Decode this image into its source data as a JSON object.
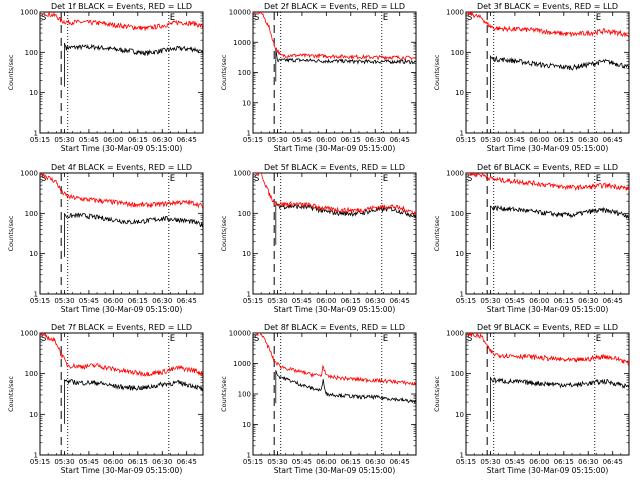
{
  "chart_data": [
    {
      "type": "line",
      "title": "Det 1f BLACK = Events, RED = LLD",
      "xlabel": "Start Time (30-Mar-09 05:15:00)",
      "ylabel": "Counts/sec",
      "scale_y": "log",
      "ylim": [
        1,
        1000
      ],
      "x_ticks": [
        "05:15",
        "05:30",
        "05:45",
        "06:00",
        "06:15",
        "06:30",
        "06:45"
      ],
      "y_ticks": [
        "1",
        "10",
        "100",
        "1000"
      ],
      "markers": {
        "start_label": "S",
        "end_label": "E",
        "dashed_line_x": "05:28",
        "dotted_lines_x": [
          "05:32",
          "06:34"
        ]
      },
      "series": [
        {
          "color": "#000000",
          "x": [
            "05:30",
            "05:31",
            "05:40",
            "05:50",
            "06:00",
            "06:10",
            "06:20",
            "06:30",
            "06:40",
            "06:50",
            "06:55"
          ],
          "y": [
            170,
            130,
            135,
            135,
            120,
            110,
            95,
            110,
            125,
            120,
            95
          ]
        },
        {
          "color": "#ff0000",
          "x": [
            "05:15",
            "05:25",
            "05:28",
            "05:32",
            "05:40",
            "05:50",
            "06:00",
            "06:10",
            "06:20",
            "06:30",
            "06:40",
            "06:50",
            "06:55"
          ],
          "y": [
            1000,
            800,
            600,
            560,
            560,
            540,
            480,
            430,
            390,
            460,
            560,
            520,
            430
          ]
        }
      ]
    },
    {
      "type": "line",
      "title": "Det 2f BLACK = Events, RED = LLD",
      "xlabel": "Start Time (30-Mar-09 05:15:00)",
      "ylabel": "Counts/sec",
      "scale_y": "log",
      "ylim": [
        1,
        10000
      ],
      "x_ticks": [
        "05:15",
        "05:30",
        "05:45",
        "06:00",
        "06:15",
        "06:30",
        "06:45"
      ],
      "y_ticks": [
        "1",
        "10",
        "100",
        "1000",
        "10000"
      ],
      "markers": {
        "start_label": "S",
        "end_label": "E",
        "dashed_line_x": "05:28",
        "dotted_lines_x": [
          "05:32",
          "06:34"
        ]
      },
      "series": [
        {
          "color": "#000000",
          "x": [
            "05:29",
            "05:30",
            "05:40",
            "05:50",
            "06:00",
            "06:10",
            "06:20",
            "06:30",
            "06:40",
            "06:50",
            "06:55"
          ],
          "y": [
            600,
            250,
            260,
            250,
            240,
            240,
            230,
            230,
            230,
            230,
            220
          ]
        },
        {
          "color": "#ff0000",
          "x": [
            "05:15",
            "05:20",
            "05:25",
            "05:28",
            "05:32",
            "05:40",
            "05:50",
            "06:00",
            "06:10",
            "06:20",
            "06:30",
            "06:40",
            "06:50",
            "06:55"
          ],
          "y": [
            10000,
            10000,
            3000,
            800,
            360,
            370,
            360,
            350,
            340,
            330,
            320,
            320,
            310,
            300
          ]
        }
      ]
    },
    {
      "type": "line",
      "title": "Det 3f BLACK = Events, RED = LLD",
      "xlabel": "Start Time (30-Mar-09 05:15:00)",
      "ylabel": "Counts/sec",
      "scale_y": "log",
      "ylim": [
        1,
        1000
      ],
      "x_ticks": [
        "05:15",
        "05:30",
        "05:45",
        "06:00",
        "06:15",
        "06:30",
        "06:45"
      ],
      "y_ticks": [
        "1",
        "10",
        "100",
        "1000"
      ],
      "markers": {
        "start_label": "S",
        "end_label": "E",
        "dashed_line_x": "05:28",
        "dotted_lines_x": [
          "05:32",
          "06:34"
        ]
      },
      "series": [
        {
          "color": "#000000",
          "x": [
            "05:30",
            "05:31",
            "05:40",
            "05:50",
            "06:00",
            "06:10",
            "06:20",
            "06:30",
            "06:40",
            "06:50",
            "06:55"
          ],
          "y": [
            80,
            70,
            65,
            58,
            50,
            45,
            42,
            50,
            60,
            50,
            40
          ]
        },
        {
          "color": "#ff0000",
          "x": [
            "05:15",
            "05:25",
            "05:28",
            "05:32",
            "05:40",
            "05:50",
            "06:00",
            "06:10",
            "06:20",
            "06:30",
            "06:40",
            "06:50",
            "06:55"
          ],
          "y": [
            1000,
            700,
            500,
            400,
            380,
            370,
            350,
            300,
            280,
            300,
            340,
            300,
            260
          ]
        }
      ]
    },
    {
      "type": "line",
      "title": "Det 4f BLACK = Events, RED = LLD",
      "xlabel": "Start Time (30-Mar-09 05:15:00)",
      "ylabel": "Counts/sec",
      "scale_y": "log",
      "ylim": [
        1,
        1000
      ],
      "x_ticks": [
        "05:15",
        "05:30",
        "05:45",
        "06:00",
        "06:15",
        "06:30",
        "06:45"
      ],
      "y_ticks": [
        "1",
        "10",
        "100",
        "1000"
      ],
      "markers": {
        "start_label": "S",
        "end_label": "E",
        "dashed_line_x": "05:28",
        "dotted_lines_x": [
          "05:32",
          "06:34"
        ]
      },
      "series": [
        {
          "color": "#000000",
          "x": [
            "05:30",
            "05:31",
            "05:40",
            "05:50",
            "06:00",
            "06:10",
            "06:20",
            "06:30",
            "06:40",
            "06:50",
            "06:55"
          ],
          "y": [
            100,
            85,
            90,
            80,
            70,
            60,
            65,
            75,
            70,
            60,
            50
          ]
        },
        {
          "color": "#ff0000",
          "x": [
            "05:15",
            "05:25",
            "05:28",
            "05:32",
            "05:40",
            "05:50",
            "06:00",
            "06:10",
            "06:20",
            "06:30",
            "06:40",
            "06:50",
            "06:55"
          ],
          "y": [
            1000,
            600,
            350,
            260,
            230,
            210,
            190,
            170,
            160,
            170,
            190,
            180,
            150
          ]
        }
      ]
    },
    {
      "type": "line",
      "title": "Det 5f BLACK = Events, RED = LLD",
      "xlabel": "Start Time (30-Mar-09 05:15:00)",
      "ylabel": "Counts/sec",
      "scale_y": "log",
      "ylim": [
        1,
        1000
      ],
      "x_ticks": [
        "05:15",
        "05:30",
        "05:45",
        "06:00",
        "06:15",
        "06:30",
        "06:45"
      ],
      "y_ticks": [
        "1",
        "10",
        "100",
        "1000"
      ],
      "markers": {
        "start_label": "S",
        "end_label": "E",
        "dashed_line_x": "05:28",
        "dotted_lines_x": [
          "05:32",
          "06:34"
        ]
      },
      "series": [
        {
          "color": "#000000",
          "x": [
            "05:29",
            "05:30",
            "05:40",
            "05:50",
            "06:00",
            "06:10",
            "06:20",
            "06:30",
            "06:40",
            "06:50",
            "06:55"
          ],
          "y": [
            200,
            150,
            150,
            140,
            110,
            100,
            100,
            120,
            130,
            100,
            80
          ]
        },
        {
          "color": "#ff0000",
          "x": [
            "05:15",
            "05:20",
            "05:25",
            "05:28",
            "05:32",
            "05:40",
            "05:50",
            "06:00",
            "06:10",
            "06:20",
            "06:30",
            "06:40",
            "06:50",
            "06:55"
          ],
          "y": [
            1000,
            1000,
            300,
            180,
            170,
            170,
            160,
            130,
            120,
            120,
            140,
            150,
            120,
            100
          ]
        }
      ]
    },
    {
      "type": "line",
      "title": "Det 6f BLACK = Events, RED = LLD",
      "xlabel": "Start Time (30-Mar-09 05:15:00)",
      "ylabel": "Counts/sec",
      "scale_y": "log",
      "ylim": [
        1,
        1000
      ],
      "x_ticks": [
        "05:15",
        "05:30",
        "05:45",
        "06:00",
        "06:15",
        "06:30",
        "06:45"
      ],
      "y_ticks": [
        "1",
        "10",
        "100",
        "1000"
      ],
      "markers": {
        "start_label": "S",
        "end_label": "E",
        "dashed_line_x": "05:28",
        "dotted_lines_x": [
          "05:32",
          "06:34"
        ]
      },
      "series": [
        {
          "color": "#000000",
          "x": [
            "05:30",
            "05:31",
            "05:40",
            "05:50",
            "06:00",
            "06:10",
            "06:20",
            "06:30",
            "06:40",
            "06:50",
            "06:55"
          ],
          "y": [
            150,
            140,
            130,
            120,
            105,
            95,
            90,
            110,
            120,
            100,
            85
          ]
        },
        {
          "color": "#ff0000",
          "x": [
            "05:15",
            "05:25",
            "05:28",
            "05:32",
            "05:40",
            "05:50",
            "06:00",
            "06:10",
            "06:20",
            "06:30",
            "06:40",
            "06:50",
            "06:55"
          ],
          "y": [
            1000,
            900,
            800,
            700,
            650,
            600,
            540,
            480,
            440,
            450,
            500,
            450,
            400
          ]
        }
      ]
    },
    {
      "type": "line",
      "title": "Det 7f BLACK = Events, RED = LLD",
      "xlabel": "Start Time (30-Mar-09 05:15:00)",
      "ylabel": "Counts/sec",
      "scale_y": "log",
      "ylim": [
        1,
        1000
      ],
      "x_ticks": [
        "05:15",
        "05:30",
        "05:45",
        "06:00",
        "06:15",
        "06:30",
        "06:45"
      ],
      "y_ticks": [
        "1",
        "10",
        "100",
        "1000"
      ],
      "markers": {
        "start_label": "S",
        "end_label": "E",
        "dashed_line_x": "05:28",
        "dotted_lines_x": [
          "05:32",
          "06:34"
        ]
      },
      "series": [
        {
          "color": "#000000",
          "x": [
            "05:30",
            "05:31",
            "05:40",
            "05:50",
            "06:00",
            "06:10",
            "06:20",
            "06:30",
            "06:40",
            "06:50",
            "06:55"
          ],
          "y": [
            70,
            65,
            60,
            60,
            50,
            45,
            45,
            55,
            60,
            50,
            40
          ]
        },
        {
          "color": "#ff0000",
          "x": [
            "05:15",
            "05:25",
            "05:28",
            "05:32",
            "05:40",
            "05:50",
            "06:00",
            "06:10",
            "06:20",
            "06:30",
            "06:40",
            "06:50",
            "06:55"
          ],
          "y": [
            1000,
            600,
            300,
            160,
            150,
            160,
            130,
            110,
            100,
            110,
            140,
            120,
            100
          ]
        }
      ]
    },
    {
      "type": "line",
      "title": "Det 8f BLACK = Events, RED = LLD",
      "xlabel": "Start Time (30-Mar-09 05:15:00)",
      "ylabel": "Counts/sec",
      "scale_y": "log",
      "ylim": [
        1,
        10000
      ],
      "x_ticks": [
        "05:15",
        "05:30",
        "05:45",
        "06:00",
        "06:15",
        "06:30",
        "06:45"
      ],
      "y_ticks": [
        "1",
        "10",
        "100",
        "1000",
        "10000"
      ],
      "markers": {
        "start_label": "S",
        "end_label": "E",
        "dashed_line_x": "05:28",
        "dotted_lines_x": [
          "05:32",
          "06:34"
        ]
      },
      "series": [
        {
          "color": "#000000",
          "x": [
            "05:29",
            "05:30",
            "05:40",
            "05:50",
            "05:57",
            "05:58",
            "06:00",
            "06:10",
            "06:20",
            "06:30",
            "06:40",
            "06:50",
            "06:55"
          ],
          "y": [
            600,
            400,
            250,
            160,
            130,
            300,
            100,
            90,
            80,
            80,
            70,
            60,
            55
          ]
        },
        {
          "color": "#ff0000",
          "x": [
            "05:15",
            "05:20",
            "05:25",
            "05:28",
            "05:32",
            "05:40",
            "05:50",
            "05:57",
            "05:58",
            "06:00",
            "06:10",
            "06:20",
            "06:30",
            "06:40",
            "06:50",
            "06:55"
          ],
          "y": [
            10000,
            10000,
            3000,
            1200,
            800,
            600,
            450,
            400,
            900,
            380,
            330,
            300,
            280,
            260,
            230,
            210
          ]
        }
      ]
    },
    {
      "type": "line",
      "title": "Det 9f BLACK = Events, RED = LLD",
      "xlabel": "Start Time (30-Mar-09 05:15:00)",
      "ylabel": "Counts/sec",
      "scale_y": "log",
      "ylim": [
        1,
        1000
      ],
      "x_ticks": [
        "05:15",
        "05:30",
        "05:45",
        "06:00",
        "06:15",
        "06:30",
        "06:45"
      ],
      "y_ticks": [
        "1",
        "10",
        "100",
        "1000"
      ],
      "markers": {
        "start_label": "S",
        "end_label": "E",
        "dashed_line_x": "05:28",
        "dotted_lines_x": [
          "05:32",
          "06:34"
        ]
      },
      "series": [
        {
          "color": "#000000",
          "x": [
            "05:30",
            "05:31",
            "05:40",
            "05:50",
            "06:00",
            "06:10",
            "06:20",
            "06:30",
            "06:40",
            "06:50",
            "06:55"
          ],
          "y": [
            80,
            70,
            65,
            62,
            58,
            55,
            52,
            58,
            65,
            55,
            45
          ]
        },
        {
          "color": "#ff0000",
          "x": [
            "05:15",
            "05:25",
            "05:28",
            "05:32",
            "05:40",
            "05:50",
            "06:00",
            "06:10",
            "06:20",
            "06:30",
            "06:40",
            "06:50",
            "06:55"
          ],
          "y": [
            1000,
            800,
            450,
            300,
            280,
            270,
            250,
            230,
            210,
            230,
            270,
            220,
            180
          ]
        }
      ]
    }
  ]
}
